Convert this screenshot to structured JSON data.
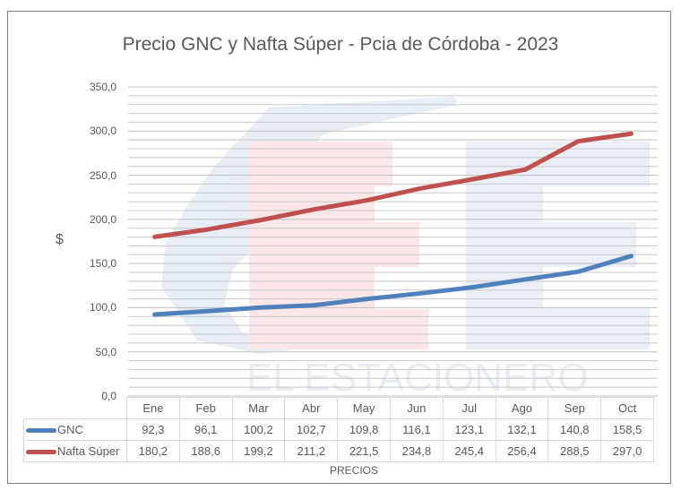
{
  "chart_data": {
    "type": "line",
    "title": "Precio GNC y Nafta Súper - Pcia de Córdoba - 2023",
    "xlabel": "PRECIOS",
    "ylabel": "$",
    "categories": [
      "Ene",
      "Feb",
      "Mar",
      "Abr",
      "May",
      "Jun",
      "Jul",
      "Ago",
      "Sep",
      "Oct"
    ],
    "series": [
      {
        "name": "GNC",
        "color": "#4f81bd",
        "values": [
          92.3,
          96.1,
          100.2,
          102.7,
          109.8,
          116.1,
          123.1,
          132.1,
          140.8,
          158.5
        ],
        "labels": [
          "92,3",
          "96,1",
          "100,2",
          "102,7",
          "109,8",
          "116,1",
          "123,1",
          "132,1",
          "140,8",
          "158,5"
        ]
      },
      {
        "name": "Nafta Súper",
        "color": "#c0504d",
        "values": [
          180.2,
          188.6,
          199.2,
          211.2,
          221.5,
          234.8,
          245.4,
          256.4,
          288.5,
          297.0
        ],
        "labels": [
          "180,2",
          "188,6",
          "199,2",
          "211,2",
          "221,5",
          "234,8",
          "245,4",
          "256,4",
          "288,5",
          "297,0"
        ]
      }
    ],
    "ylim": [
      0,
      350
    ],
    "yticks": [
      "350,0",
      "300,0",
      "250,0",
      "200,0",
      "150,0",
      "100,0",
      "50,0",
      "0,0"
    ],
    "grid": true,
    "legend_position": "data-table",
    "watermark": "EL ESTACIONERO"
  }
}
